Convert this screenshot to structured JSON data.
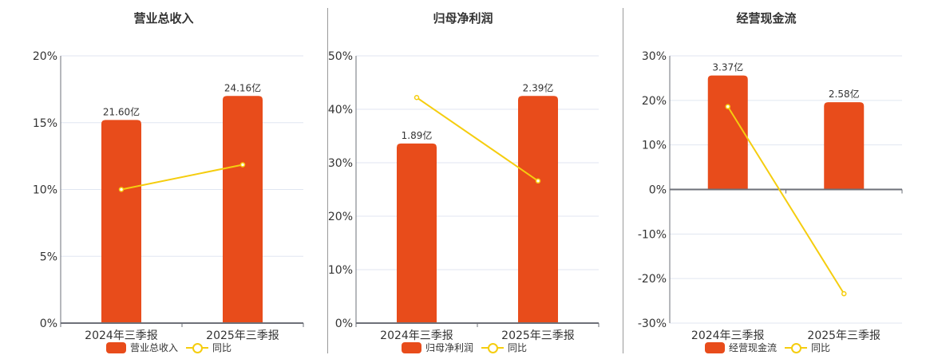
{
  "colors": {
    "bar": "#e84c1b",
    "line": "#f5cd0f",
    "grid": "#e0e6f1",
    "axis": "#6e7079",
    "text": "#333333"
  },
  "legend_line_label": "同比",
  "chart_data": [
    {
      "type": "bar+line",
      "title": "营业总收入",
      "categories": [
        "2024年三季报",
        "2025年三季报"
      ],
      "y_ticks": [
        "0%",
        "5%",
        "10%",
        "15%",
        "20%"
      ],
      "ylim": [
        0,
        20
      ],
      "series": [
        {
          "name": "营业总收入",
          "type": "bar",
          "values": [
            21.6,
            24.16
          ],
          "unit": "亿",
          "labels": [
            "21.60亿",
            "24.16亿"
          ],
          "bar_height_pct": [
            15.2,
            17.0
          ]
        },
        {
          "name": "同比",
          "type": "line",
          "values": [
            10.0,
            11.85
          ]
        }
      ],
      "grid": true,
      "legend_position": "bottom"
    },
    {
      "type": "bar+line",
      "title": "归母净利润",
      "categories": [
        "2024年三季报",
        "2025年三季报"
      ],
      "y_ticks": [
        "0%",
        "10%",
        "20%",
        "30%",
        "40%",
        "50%"
      ],
      "ylim": [
        0,
        50
      ],
      "series": [
        {
          "name": "归母净利润",
          "type": "bar",
          "values": [
            1.89,
            2.39
          ],
          "unit": "亿",
          "labels": [
            "1.89亿",
            "2.39亿"
          ],
          "bar_height_pct": [
            33.6,
            42.5
          ]
        },
        {
          "name": "同比",
          "type": "line",
          "values": [
            42.2,
            26.6
          ]
        }
      ],
      "grid": true,
      "legend_position": "bottom"
    },
    {
      "type": "bar+line",
      "title": "经营现金流",
      "categories": [
        "2024年三季报",
        "2025年三季报"
      ],
      "y_ticks": [
        "-30%",
        "-20%",
        "-10%",
        "0%",
        "10%",
        "20%",
        "30%"
      ],
      "ylim": [
        -30,
        30
      ],
      "series": [
        {
          "name": "经营现金流",
          "type": "bar",
          "values": [
            3.37,
            2.58
          ],
          "unit": "亿",
          "labels": [
            "3.37亿",
            "2.58亿"
          ],
          "bar_height_pct": [
            25.6,
            19.6
          ]
        },
        {
          "name": "同比",
          "type": "line",
          "values": [
            18.6,
            -23.4
          ]
        }
      ],
      "grid": true,
      "legend_position": "bottom"
    }
  ]
}
